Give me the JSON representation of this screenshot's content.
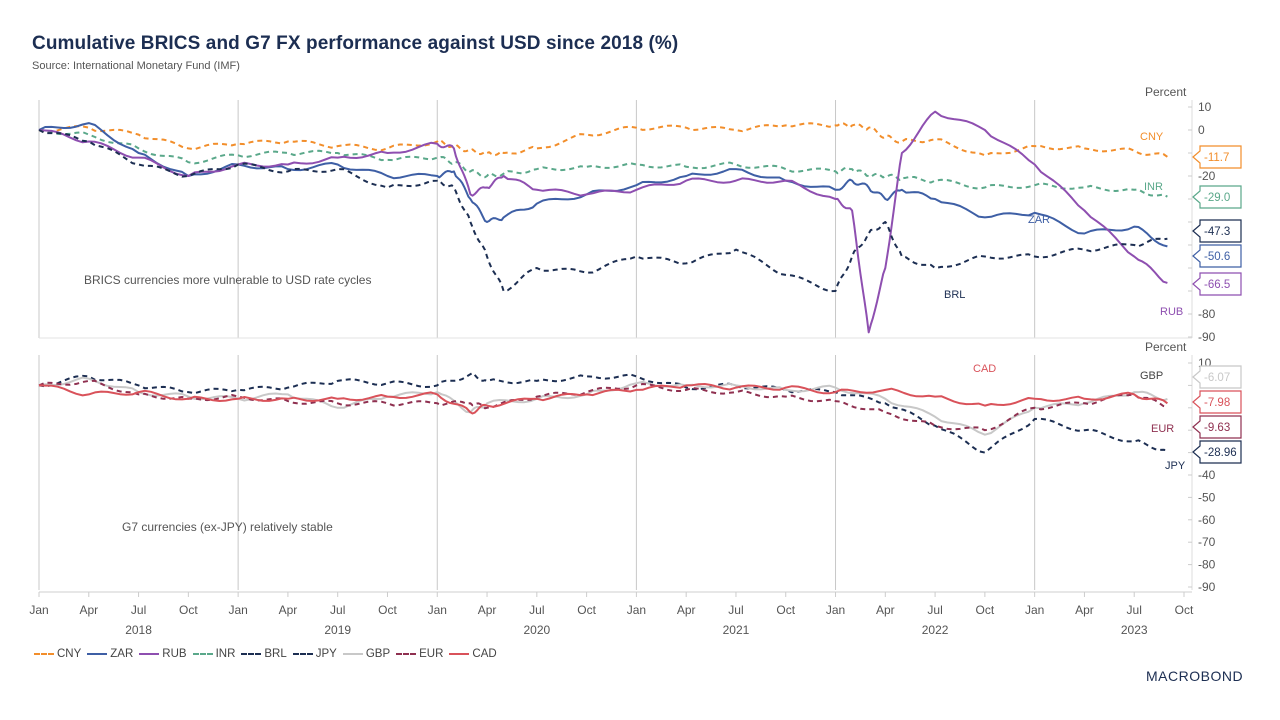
{
  "header": {
    "title": "Cumulative BRICS and G7 FX performance against USD since 2018 (%)",
    "source": "Source: International Monetary Fund (IMF)"
  },
  "logo": "MACROBOND",
  "colors": {
    "CNY": "#f28e2b",
    "ZAR": "#3e5fa5",
    "RUB": "#8e4fb0",
    "INR": "#5aa88a",
    "BRL": "#1c2e52",
    "JPY": "#1c2e52",
    "GBP": "#c8c8c8",
    "EUR": "#8f3050",
    "CAD": "#d9525a"
  },
  "legend": [
    {
      "name": "CNY",
      "style": "dashed"
    },
    {
      "name": "ZAR",
      "style": "solid"
    },
    {
      "name": "RUB",
      "style": "solid"
    },
    {
      "name": "INR",
      "style": "dashed"
    },
    {
      "name": "BRL",
      "style": "dashed"
    },
    {
      "name": "JPY",
      "style": "dashed"
    },
    {
      "name": "GBP",
      "style": "solid"
    },
    {
      "name": "EUR",
      "style": "dashed"
    },
    {
      "name": "CAD",
      "style": "solid"
    }
  ],
  "chart_data": [
    {
      "type": "line",
      "title": "BRICS",
      "ylabel": "Percent",
      "ylim": [
        -90,
        10
      ],
      "yticks": [
        10,
        0,
        -20,
        -80,
        -90
      ],
      "xlim": [
        "2018-01",
        "2023-10"
      ],
      "annotation": "BRICS currencies more vulnerable to USD rate cycles",
      "x": [
        "2018-01",
        "2018-04",
        "2018-07",
        "2018-10",
        "2019-01",
        "2019-04",
        "2019-07",
        "2019-10",
        "2020-01",
        "2020-02",
        "2020-03",
        "2020-04",
        "2020-05",
        "2020-07",
        "2020-10",
        "2021-01",
        "2021-04",
        "2021-07",
        "2021-10",
        "2022-01",
        "2022-02",
        "2022-03",
        "2022-04",
        "2022-05",
        "2022-07",
        "2022-10",
        "2023-01",
        "2023-04",
        "2023-07",
        "2023-09"
      ],
      "series": [
        {
          "name": "CNY",
          "style": "dashed",
          "last_value_tag": "-11.7",
          "values": [
            0,
            1,
            -2,
            -8,
            -6,
            -5,
            -7,
            -8,
            -5,
            -7,
            -9,
            -10,
            -10,
            -8,
            -2,
            1,
            1,
            0,
            2,
            2,
            2,
            1,
            -3,
            -5,
            -4,
            -11,
            -7,
            -8,
            -9,
            -11.7
          ]
        },
        {
          "name": "INR",
          "style": "dashed",
          "last_value_tag": "-29.0",
          "values": [
            0,
            -2,
            -8,
            -14,
            -11,
            -10,
            -10,
            -13,
            -12,
            -14,
            -18,
            -20,
            -19,
            -17,
            -16,
            -15,
            -16,
            -15,
            -17,
            -18,
            -17,
            -20,
            -20,
            -21,
            -22,
            -25,
            -24,
            -25,
            -26,
            -29.0
          ]
        },
        {
          "name": "ZAR",
          "style": "solid",
          "last_value_tag": "-50.6",
          "values": [
            0,
            3,
            -10,
            -20,
            -15,
            -17,
            -15,
            -20,
            -20,
            -18,
            -30,
            -40,
            -38,
            -32,
            -28,
            -24,
            -20,
            -17,
            -22,
            -26,
            -22,
            -25,
            -30,
            -26,
            -30,
            -38,
            -36,
            -45,
            -42,
            -50.6
          ]
        },
        {
          "name": "RUB",
          "style": "solid",
          "last_value_tag": "-66.5",
          "values": [
            0,
            -5,
            -12,
            -20,
            -15,
            -15,
            -12,
            -10,
            -6,
            -8,
            -28,
            -25,
            -20,
            -26,
            -28,
            -26,
            -22,
            -22,
            -22,
            -30,
            -35,
            -88,
            -60,
            -10,
            8,
            0,
            -15,
            -35,
            -55,
            -66.5
          ]
        },
        {
          "name": "BRL",
          "style": "dashed",
          "last_value_tag": "-47.3",
          "values": [
            0,
            -5,
            -15,
            -20,
            -15,
            -18,
            -17,
            -25,
            -22,
            -25,
            -40,
            -55,
            -70,
            -60,
            -62,
            -55,
            -58,
            -52,
            -63,
            -70,
            -55,
            -45,
            -40,
            -55,
            -60,
            -55,
            -55,
            -52,
            -50,
            -47.3
          ]
        }
      ],
      "inline_labels": [
        "CNY",
        "INR",
        "ZAR",
        "BRL",
        "RUB"
      ]
    },
    {
      "type": "line",
      "title": "G7",
      "ylabel": "Percent",
      "ylim": [
        -90,
        10
      ],
      "yticks": [
        10,
        -40,
        -50,
        -60,
        -70,
        -80,
        -90
      ],
      "xlim": [
        "2018-01",
        "2023-10"
      ],
      "annotation": "G7 currencies (ex-JPY) relatively stable",
      "x": [
        "2018-01",
        "2018-04",
        "2018-07",
        "2018-10",
        "2019-01",
        "2019-04",
        "2019-07",
        "2019-10",
        "2020-01",
        "2020-03",
        "2020-04",
        "2020-07",
        "2020-10",
        "2021-01",
        "2021-04",
        "2021-07",
        "2021-10",
        "2022-01",
        "2022-04",
        "2022-07",
        "2022-10",
        "2023-01",
        "2023-04",
        "2023-07",
        "2023-09"
      ],
      "series": [
        {
          "name": "JPY",
          "style": "dashed",
          "last_value_tag": "-28.96",
          "values": [
            0,
            4,
            0,
            -3,
            -2,
            -1,
            2,
            1,
            0,
            5,
            2,
            2,
            4,
            4,
            -1,
            0,
            -2,
            -3,
            -8,
            -18,
            -30,
            -15,
            -20,
            -25,
            -28.96
          ]
        },
        {
          "name": "GBP",
          "style": "solid",
          "last_value_tag": "-6.07",
          "values": [
            0,
            3,
            -3,
            -5,
            -6,
            -4,
            -10,
            -5,
            -3,
            -12,
            -8,
            -6,
            -4,
            1,
            0,
            0,
            -2,
            -1,
            -6,
            -14,
            -22,
            -10,
            -8,
            -3,
            -6.07
          ]
        },
        {
          "name": "EUR",
          "style": "dashed",
          "last_value_tag": "-9.63",
          "values": [
            0,
            2,
            -4,
            -6,
            -5,
            -7,
            -8,
            -8,
            -8,
            -8,
            -10,
            -5,
            -3,
            0,
            -2,
            -3,
            -5,
            -7,
            -12,
            -18,
            -20,
            -10,
            -8,
            -4,
            -9.63
          ]
        },
        {
          "name": "CAD",
          "style": "solid",
          "last_value_tag": "-7.98",
          "values": [
            0,
            -4,
            -3,
            -6,
            -6,
            -6,
            -6,
            -5,
            -4,
            -12,
            -9,
            -6,
            -4,
            -2,
            0,
            -1,
            -1,
            -3,
            -2,
            -5,
            -9,
            -6,
            -6,
            -4,
            -7.98
          ]
        }
      ],
      "inline_labels": [
        "CAD",
        "GBP",
        "EUR",
        "JPY"
      ]
    }
  ],
  "x_axis": {
    "months": [
      "Jan",
      "Apr",
      "Jul",
      "Oct",
      "Jan",
      "Apr",
      "Jul",
      "Oct",
      "Jan",
      "Apr",
      "Jul",
      "Oct",
      "Jan",
      "Apr",
      "Jul",
      "Oct",
      "Jan",
      "Apr",
      "Jul",
      "Oct",
      "Jan",
      "Apr",
      "Jul",
      "Oct"
    ],
    "years": [
      "2018",
      "2019",
      "2020",
      "2021",
      "2022",
      "2023"
    ]
  }
}
